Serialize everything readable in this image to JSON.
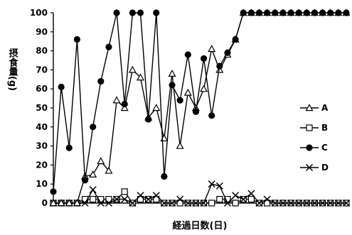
{
  "chart_data": {
    "type": "line",
    "xlabel": "経過日数(日)",
    "ylabel": "摂食量(g)",
    "ylim": [
      0,
      100
    ],
    "yticks": [
      "0",
      "10",
      "20",
      "30",
      "40",
      "50",
      "60",
      "70",
      "80",
      "90",
      "100"
    ],
    "n_points": 38,
    "legend_position": "right",
    "grid": false,
    "series": [
      {
        "name": "A",
        "marker": "triangle-open",
        "values": [
          0,
          0,
          0,
          0,
          14,
          15,
          22,
          17,
          54,
          50,
          70,
          66,
          45,
          50,
          34,
          68,
          30,
          58,
          50,
          60,
          81,
          70,
          78,
          86,
          100,
          100,
          100,
          100,
          100,
          100,
          100,
          100,
          100,
          100,
          100,
          100,
          100,
          100
        ]
      },
      {
        "name": "B",
        "marker": "square-open",
        "values": [
          0,
          0,
          0,
          0,
          2,
          2,
          2,
          2,
          2,
          6,
          0,
          2,
          2,
          2,
          0,
          0,
          0,
          0,
          0,
          0,
          0,
          2,
          2,
          0,
          2,
          2,
          0,
          0,
          0,
          0,
          0,
          0,
          0,
          0,
          0,
          0,
          0,
          0
        ]
      },
      {
        "name": "C",
        "marker": "circle-filled",
        "values": [
          6,
          61,
          29,
          86,
          12,
          40,
          64,
          82,
          100,
          52,
          100,
          100,
          44,
          100,
          14,
          62,
          54,
          78,
          48,
          76,
          46,
          72,
          79,
          86,
          100,
          100,
          100,
          100,
          100,
          100,
          100,
          100,
          100,
          100,
          100,
          100,
          100,
          100
        ]
      },
      {
        "name": "D",
        "marker": "x",
        "values": [
          0,
          0,
          0,
          0,
          0,
          7,
          0,
          0,
          2,
          2,
          0,
          4,
          2,
          4,
          0,
          0,
          2,
          0,
          0,
          0,
          10,
          9,
          0,
          4,
          2,
          5,
          0,
          2,
          0,
          0,
          0,
          0,
          0,
          0,
          0,
          0,
          0,
          0
        ]
      }
    ]
  }
}
